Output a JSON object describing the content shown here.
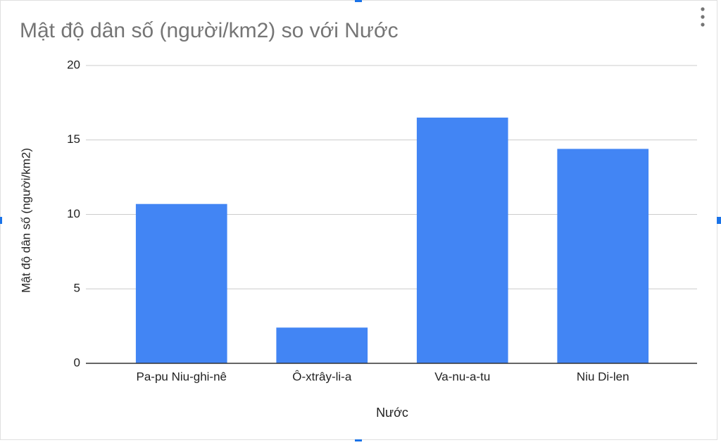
{
  "chart_data": {
    "type": "bar",
    "title": "Mật độ dân số (người/km2) so với Nước",
    "x_label": "Nước",
    "y_label": "Mật độ dân số (người/km2)",
    "categories": [
      "Pa-pu Niu-ghi-nê",
      "Ô-xtrây-li-a",
      "Va-nu-a-tu",
      "Niu Di-len"
    ],
    "values": [
      10.7,
      2.4,
      16.5,
      14.4
    ],
    "color": "#4285f4",
    "ylim": [
      0,
      20
    ],
    "yticks": [
      0,
      5,
      10,
      15,
      20
    ],
    "grid": true
  }
}
